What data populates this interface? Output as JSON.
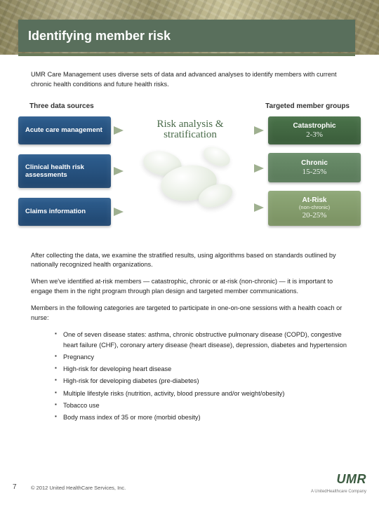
{
  "header": {
    "title": "Identifying member risk"
  },
  "intro": "UMR Care Management uses diverse sets of data and advanced analyses to identify members with current chronic health conditions and future health risks.",
  "diagram": {
    "left_header": "Three data sources",
    "right_header": "Targeted member groups",
    "center_label": "Risk analysis & stratification",
    "left_boxes": [
      {
        "title": "Acute care management",
        "bg": "#2e5e8f"
      },
      {
        "title": "Clinical health risk assessments",
        "bg": "#2e5e8f"
      },
      {
        "title": "Claims information",
        "bg": "#2e5e8f"
      }
    ],
    "right_boxes": [
      {
        "title": "Catastrophic",
        "pct": "2-3%",
        "bg": "#4a734a"
      },
      {
        "title": "Chronic",
        "pct": "15-25%",
        "bg": "#6b8e6b"
      },
      {
        "title": "At-Risk",
        "sub": "(non-chronic)",
        "pct": "20-25%",
        "bg": "#8fa878"
      }
    ],
    "arrow_color": "#9fb090",
    "swirl_colors": [
      "#ffffff",
      "#d8e2d0"
    ]
  },
  "paragraphs": [
    "After collecting the data, we examine the stratified results, using algorithms based on standards outlined by nationally recognized health organizations.",
    "When we've identified at-risk members — catastrophic, chronic or at-risk (non-chronic) — it is important to engage them in the right program through plan design and targeted member communications.",
    "Members in the following categories are targeted to participate in one-on-one sessions with a health coach or nurse:"
  ],
  "bullets": [
    "One of seven disease states: asthma, chronic obstructive pulmonary disease (COPD), congestive heart failure (CHF), coronary artery disease (heart disease), depression, diabetes and hypertension",
    "Pregnancy",
    "High-risk for developing heart disease",
    "High-risk for developing diabetes (pre-diabetes)",
    "Multiple lifestyle risks (nutrition, activity, blood pressure and/or weight/obesity)",
    "Tobacco use",
    "Body mass index of 35 or more (morbid obesity)"
  ],
  "footer": {
    "page": "7",
    "copyright": "© 2012 United HealthCare Services, Inc.",
    "logo": "UMR",
    "logo_sub": "A UnitedHealthcare Company"
  },
  "colors": {
    "header_bg": "#596f5c",
    "texture_bg": "#a09a76",
    "text": "#222222"
  }
}
